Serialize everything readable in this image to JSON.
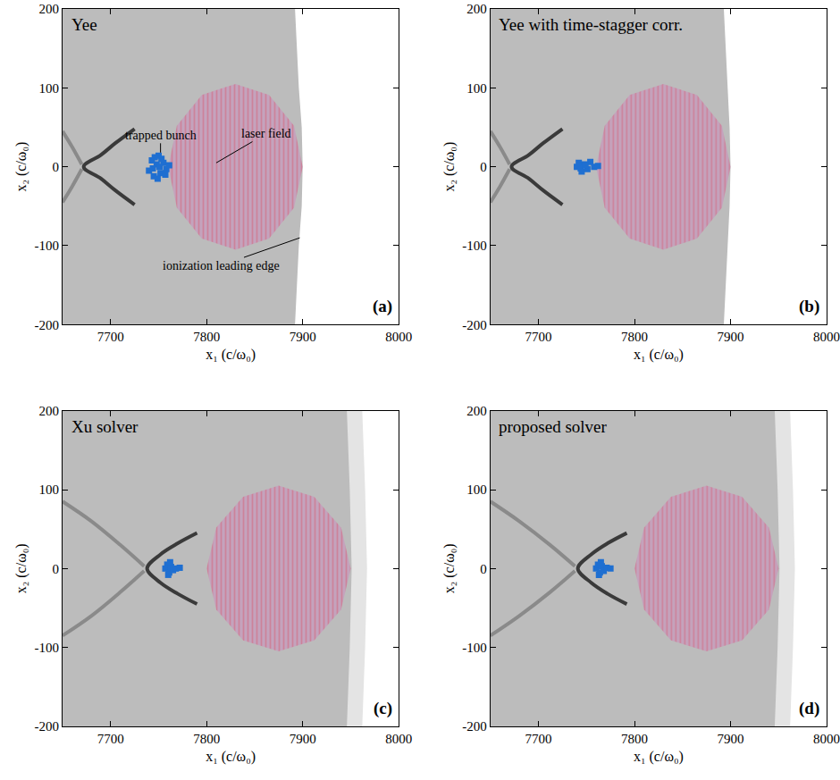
{
  "chart_data": [
    {
      "type": "scatter",
      "title": "Yee",
      "label": "(a)",
      "color": "#bcbcbc",
      "x_label": "x₁ (c/ω₀)",
      "y_label": "x₂ (c/ω₀)",
      "xlim": [
        7650,
        8000
      ],
      "xticks": [
        7700,
        7800,
        7900,
        8000
      ],
      "ylim": [
        -200,
        200
      ],
      "yticks": [
        -200,
        -100,
        0,
        100,
        200
      ],
      "series": [
        {
          "type": "area",
          "color": "#ffffff",
          "x": [
            7892,
            7896,
            7899,
            7900,
            7899,
            7896,
            7892,
            8000,
            8000
          ],
          "values": [
            200,
            100,
            50,
            0,
            -50,
            -100,
            -200,
            -200,
            200
          ]
        },
        {
          "type": "area",
          "color": "#c79bbd",
          "line_style": "striped",
          "x": [
            7900,
            7891,
            7865,
            7830,
            7795,
            7769,
            7760,
            7769,
            7795,
            7830,
            7865,
            7891
          ],
          "values": [
            0,
            52,
            91,
            105,
            91,
            52,
            0,
            -52,
            -91,
            -105,
            -91,
            -52
          ]
        },
        {
          "type": "line",
          "color": "#8a8a8a",
          "x": [
            7650,
            7660,
            7670,
            null,
            7670,
            7660,
            7650
          ],
          "values": [
            45,
            25,
            3,
            null,
            -3,
            -25,
            -45
          ]
        },
        {
          "type": "line",
          "color": "#3a3a3a",
          "x": [
            7725,
            7705,
            7690,
            7672,
            7690,
            7705,
            7725
          ],
          "values": [
            48,
            30,
            15,
            0,
            -15,
            -30,
            -48
          ]
        },
        {
          "type": "scatter",
          "color": "#1f6fd1",
          "marker": "square",
          "x": [
            7740,
            7743,
            7745,
            7748,
            7750,
            7752,
            7755,
            7758,
            7761,
            7744,
            7749,
            7753,
            7757,
            7746,
            7751
          ],
          "values": [
            -5,
            8,
            -12,
            3,
            14,
            -8,
            5,
            -3,
            2,
            -2,
            -15,
            10,
            -10,
            12,
            0
          ]
        }
      ],
      "annotations": [
        {
          "text": "trapped bunch",
          "x": 7752,
          "y": 18,
          "text_x": 7752,
          "text_y": 40
        },
        {
          "text": "laser field",
          "x": 7810,
          "y": 5,
          "text_x": 7862,
          "text_y": 42
        },
        {
          "text": "ionization leading edge",
          "x": 7897,
          "y": -90,
          "text_x": 7815,
          "text_y": -125
        }
      ]
    },
    {
      "type": "scatter",
      "title": "Yee with time-stagger corr.",
      "label": "(b)",
      "color": "#bcbcbc",
      "x_label": "x₁ (c/ω₀)",
      "y_label": "x₂ (c/ω₀)",
      "xlim": [
        7650,
        8000
      ],
      "xticks": [
        7700,
        7800,
        7900,
        8000
      ],
      "ylim": [
        -200,
        200
      ],
      "yticks": [
        -200,
        -100,
        0,
        100,
        200
      ],
      "series": [
        {
          "type": "area",
          "color": "#ffffff",
          "x": [
            7893,
            7897,
            7899,
            7900,
            7899,
            7897,
            7893,
            8000,
            8000
          ],
          "values": [
            200,
            100,
            50,
            0,
            -50,
            -100,
            -200,
            -200,
            200
          ]
        },
        {
          "type": "area",
          "color": "#c79bbd",
          "line_style": "striped",
          "x": [
            7900,
            7891,
            7865,
            7830,
            7795,
            7769,
            7760,
            7769,
            7795,
            7830,
            7865,
            7891
          ],
          "values": [
            0,
            52,
            91,
            105,
            91,
            52,
            0,
            -52,
            -91,
            -105,
            -91,
            -52
          ]
        },
        {
          "type": "line",
          "color": "#8a8a8a",
          "x": [
            7650,
            7660,
            7670,
            null,
            7670,
            7660,
            7650
          ],
          "values": [
            45,
            25,
            3,
            null,
            -3,
            -25,
            -45
          ]
        },
        {
          "type": "line",
          "color": "#3a3a3a",
          "x": [
            7725,
            7705,
            7690,
            7672,
            7690,
            7705,
            7725
          ],
          "values": [
            48,
            30,
            15,
            0,
            -15,
            -30,
            -48
          ]
        },
        {
          "type": "scatter",
          "color": "#1f6fd1",
          "marker": "square",
          "x": [
            7740,
            7742,
            7745,
            7748,
            7751,
            7754,
            7758,
            7762,
            7744,
            7749
          ],
          "values": [
            0,
            5,
            -6,
            3,
            -3,
            6,
            0,
            1,
            -2,
            2
          ]
        }
      ]
    },
    {
      "type": "scatter",
      "title": "Xu solver",
      "label": "(c)",
      "color": "#bcbcbc",
      "x_label": "x₁ (c/ω₀)",
      "y_label": "x₂ (c/ω₀)",
      "xlim": [
        7650,
        8000
      ],
      "xticks": [
        7700,
        7800,
        7900,
        8000
      ],
      "ylim": [
        -200,
        200
      ],
      "yticks": [
        -200,
        -100,
        0,
        100,
        200
      ],
      "series": [
        {
          "type": "area",
          "color": "#e4e4e4",
          "x": [
            7946,
            7949,
            7951,
            7949,
            7946,
            8000,
            8000
          ],
          "values": [
            200,
            100,
            0,
            -100,
            -200,
            -200,
            200
          ]
        },
        {
          "type": "area",
          "color": "#ffffff",
          "x": [
            7962,
            7965,
            7967,
            7965,
            7962,
            8000,
            8000
          ],
          "values": [
            200,
            100,
            0,
            -100,
            -200,
            -200,
            200
          ]
        },
        {
          "type": "area",
          "color": "#c79bbd",
          "line_style": "striped",
          "x": [
            7950,
            7940,
            7912,
            7875,
            7838,
            7810,
            7800,
            7810,
            7838,
            7875,
            7912,
            7940
          ],
          "values": [
            0,
            52,
            91,
            105,
            91,
            52,
            0,
            -52,
            -91,
            -105,
            -91,
            -52
          ]
        },
        {
          "type": "line",
          "color": "#8a8a8a",
          "x": [
            7650,
            7680,
            7710,
            7735,
            null,
            7735,
            7710,
            7680,
            7650
          ],
          "values": [
            85,
            60,
            30,
            3,
            null,
            -3,
            -30,
            -60,
            -85
          ]
        },
        {
          "type": "line",
          "color": "#3a3a3a",
          "x": [
            7790,
            7770,
            7752,
            7738,
            7752,
            7770,
            7790
          ],
          "values": [
            45,
            32,
            18,
            0,
            -18,
            -32,
            -45
          ]
        },
        {
          "type": "scatter",
          "color": "#1f6fd1",
          "marker": "square",
          "x": [
            7757,
            7759,
            7761,
            7763,
            7765,
            7768,
            7772,
            7760,
            7762
          ],
          "values": [
            0,
            5,
            -5,
            2,
            -2,
            0,
            1,
            -8,
            8
          ]
        }
      ]
    },
    {
      "type": "scatter",
      "title": "proposed solver",
      "label": "(d)",
      "color": "#bcbcbc",
      "x_label": "x₁ (c/ω₀)",
      "y_label": "x₂ (c/ω₀)",
      "xlim": [
        7650,
        8000
      ],
      "xticks": [
        7700,
        7800,
        7900,
        8000
      ],
      "ylim": [
        -200,
        200
      ],
      "yticks": [
        -200,
        -100,
        0,
        100,
        200
      ],
      "series": [
        {
          "type": "area",
          "color": "#e4e4e4",
          "x": [
            7946,
            7949,
            7951,
            7949,
            7946,
            8000,
            8000
          ],
          "values": [
            200,
            100,
            0,
            -100,
            -200,
            -200,
            200
          ]
        },
        {
          "type": "area",
          "color": "#ffffff",
          "x": [
            7962,
            7965,
            7967,
            7965,
            7962,
            8000,
            8000
          ],
          "values": [
            200,
            100,
            0,
            -100,
            -200,
            -200,
            200
          ]
        },
        {
          "type": "area",
          "color": "#c79bbd",
          "line_style": "striped",
          "x": [
            7950,
            7940,
            7912,
            7875,
            7838,
            7810,
            7800,
            7810,
            7838,
            7875,
            7912,
            7940
          ],
          "values": [
            0,
            52,
            91,
            105,
            91,
            52,
            0,
            -52,
            -91,
            -105,
            -91,
            -52
          ]
        },
        {
          "type": "line",
          "color": "#8a8a8a",
          "x": [
            7650,
            7680,
            7712,
            7738,
            null,
            7738,
            7712,
            7680,
            7650
          ],
          "values": [
            85,
            60,
            30,
            3,
            null,
            -3,
            -30,
            -60,
            -85
          ]
        },
        {
          "type": "line",
          "color": "#3a3a3a",
          "x": [
            7792,
            7772,
            7755,
            7741,
            7755,
            7772,
            7792
          ],
          "values": [
            45,
            32,
            18,
            0,
            -18,
            -32,
            -45
          ]
        },
        {
          "type": "scatter",
          "color": "#1f6fd1",
          "marker": "square",
          "x": [
            7760,
            7762,
            7764,
            7766,
            7768,
            7771,
            7775,
            7763,
            7765
          ],
          "values": [
            0,
            5,
            -5,
            3,
            -3,
            1,
            0,
            -8,
            8
          ]
        }
      ]
    }
  ]
}
